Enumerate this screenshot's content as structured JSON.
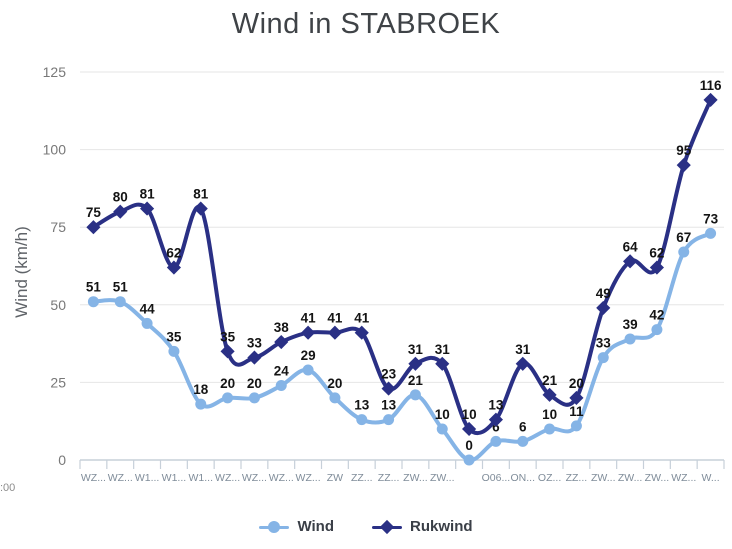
{
  "title": "Wind in STABROEK",
  "y_axis": {
    "title": "Wind (km/h)"
  },
  "x_axis": {
    "corner_fragment": ":00"
  },
  "legend": {
    "items": [
      {
        "label": "Wind"
      },
      {
        "label": "Rukwind"
      }
    ]
  },
  "colors": {
    "wind": "#85b4e6",
    "rukwind": "#2a3085",
    "grid": "#e6e6e6",
    "axis": "#c7d0d9",
    "value_label": "#141414",
    "axis_text": "#7f8c99",
    "y_tick_text": "#787878",
    "title_text": "#3f4347"
  },
  "chart_data": {
    "type": "line",
    "title": "Wind in STABROEK",
    "xlabel": "",
    "ylabel": "Wind (km/h)",
    "ylim": [
      0,
      125
    ],
    "y_ticks": [
      0,
      25,
      50,
      75,
      100,
      125
    ],
    "grid": true,
    "legend_position": "bottom",
    "categories": [
      "WZ...",
      "WZ...",
      "W1...",
      "W1...",
      "W1...",
      "WZ...",
      "WZ...",
      "WZ...",
      "WZ...",
      "ZW",
      "ZZ...",
      "ZZ...",
      "ZW...",
      "ZW...",
      "",
      "O06...",
      "ON...",
      "OZ...",
      "ZZ...",
      "ZW...",
      "ZW...",
      "ZW...",
      "WZ...",
      "W..."
    ],
    "series": [
      {
        "name": "Wind",
        "marker": "circle",
        "color": "#85b4e6",
        "values": [
          51,
          51,
          44,
          35,
          18,
          20,
          20,
          24,
          29,
          20,
          13,
          13,
          21,
          10,
          0,
          6,
          6,
          10,
          11,
          33,
          39,
          42,
          67,
          73
        ]
      },
      {
        "name": "Rukwind",
        "marker": "diamond",
        "color": "#2a3085",
        "values": [
          75,
          80,
          81,
          62,
          81,
          35,
          33,
          38,
          41,
          41,
          41,
          23,
          31,
          31,
          10,
          13,
          31,
          21,
          20,
          49,
          64,
          62,
          95,
          116
        ]
      }
    ]
  }
}
